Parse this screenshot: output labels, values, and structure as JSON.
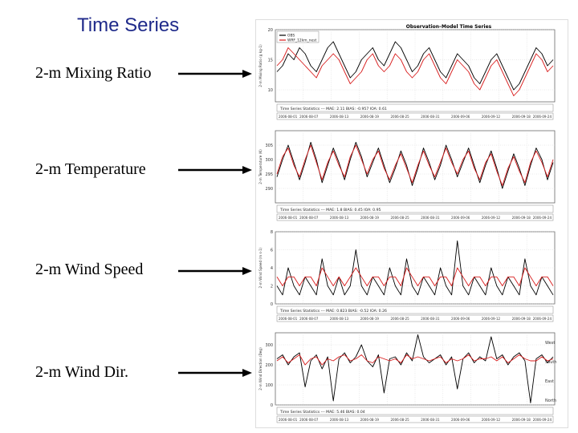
{
  "slide": {
    "title": "Time Series",
    "rows": [
      {
        "label": "2-m Mixing Ratio"
      },
      {
        "label": "2-m Temperature"
      },
      {
        "label": "2-m Wind Speed"
      },
      {
        "label": "2-m Wind Dir."
      }
    ]
  },
  "chart_data": {
    "type": "line",
    "title": "Observation–Model Time Series",
    "x_tick_labels": [
      "2006-08-01",
      "2006-08-07",
      "2006-08-13",
      "2006-08-19",
      "2006-08-25",
      "2006-08-31",
      "2006-09-06",
      "2006-09-12",
      "2006-09-18",
      "2006-09-24"
    ],
    "colors": {
      "observed": "#000000",
      "model": "#d81b1b"
    },
    "legend": {
      "placement": "top-left",
      "entries": [
        "OBS",
        "WRF_12km_nest"
      ]
    },
    "panels": [
      {
        "name": "mixing-ratio",
        "ylabel": "2-m Mixing Ratio (g kg-1)",
        "ylim": [
          8,
          20
        ],
        "yticks": [
          "20",
          "15",
          "10"
        ],
        "stats_text": "Time Series Statistics ---    MAE: 2.11      BIAS: -0.957      IOA: 0.61",
        "series": [
          {
            "key": "obs",
            "values": [
              13,
              14,
              16,
              15,
              17,
              16,
              14,
              13,
              15,
              17,
              18,
              16,
              14,
              12,
              13,
              15,
              16,
              17,
              15,
              14,
              16,
              18,
              17,
              15,
              13,
              14,
              16,
              17,
              15,
              13,
              12,
              14,
              16,
              15,
              14,
              12,
              11,
              13,
              15,
              16,
              14,
              12,
              10,
              11,
              13,
              15,
              17,
              16,
              14,
              15
            ]
          },
          {
            "key": "model",
            "values": [
              14,
              15,
              17,
              16,
              15,
              14,
              13,
              12,
              14,
              15,
              16,
              15,
              13,
              11,
              12,
              13,
              15,
              16,
              14,
              13,
              14,
              16,
              15,
              13,
              12,
              13,
              15,
              16,
              14,
              12,
              11,
              13,
              15,
              14,
              13,
              11,
              10,
              12,
              14,
              15,
              13,
              11,
              9,
              10,
              12,
              14,
              16,
              15,
              13,
              14
            ]
          }
        ]
      },
      {
        "name": "temperature",
        "ylabel": "2-m Temperature (K)",
        "ylim": [
          285,
          310
        ],
        "yticks": [
          "305",
          "300",
          "295",
          "290"
        ],
        "stats_text": "Time Series Statistics ---    MAE: 1.8       BIAS: 0.45       IOA: 0.95",
        "series": [
          {
            "key": "obs",
            "values": [
              294,
              300,
              305,
              299,
              293,
              299,
              306,
              300,
              292,
              298,
              304,
              299,
              293,
              300,
              306,
              301,
              294,
              299,
              304,
              298,
              292,
              297,
              303,
              298,
              291,
              297,
              304,
              299,
              293,
              298,
              305,
              300,
              294,
              299,
              304,
              298,
              292,
              298,
              303,
              297,
              290,
              296,
              302,
              297,
              291,
              298,
              304,
              300,
              293,
              299
            ]
          },
          {
            "key": "model",
            "values": [
              295,
              301,
              304,
              298,
              294,
              300,
              305,
              299,
              293,
              299,
              303,
              298,
              294,
              301,
              305,
              300,
              295,
              300,
              303,
              297,
              293,
              298,
              302,
              297,
              292,
              298,
              303,
              298,
              294,
              299,
              304,
              299,
              295,
              300,
              303,
              297,
              293,
              299,
              302,
              296,
              291,
              297,
              301,
              296,
              292,
              299,
              303,
              299,
              294,
              300
            ]
          }
        ]
      },
      {
        "name": "wind-speed",
        "ylabel": "2-m Wind Speed (m s-1)",
        "ylim": [
          0,
          8
        ],
        "yticks": [
          "8",
          "6",
          "4",
          "2",
          "0"
        ],
        "stats_text": "Time Series Statistics ---    MAE: 0.823     BIAS: -0.52      IOA: 0.26",
        "series": [
          {
            "key": "obs",
            "values": [
              2,
              1,
              4,
              2,
              1,
              3,
              2,
              1,
              5,
              2,
              1,
              3,
              1,
              2,
              6,
              2,
              1,
              3,
              2,
              1,
              4,
              2,
              1,
              5,
              2,
              1,
              3,
              2,
              1,
              4,
              2,
              1,
              7,
              2,
              1,
              3,
              2,
              1,
              4,
              2,
              1,
              3,
              2,
              1,
              5,
              2,
              1,
              3,
              2,
              1
            ]
          },
          {
            "key": "model",
            "values": [
              3,
              2,
              3,
              3,
              2,
              3,
              3,
              2,
              4,
              3,
              2,
              3,
              2,
              3,
              4,
              3,
              2,
              3,
              3,
              2,
              3,
              3,
              2,
              4,
              3,
              2,
              3,
              3,
              2,
              3,
              3,
              2,
              4,
              3,
              2,
              3,
              3,
              2,
              3,
              3,
              2,
              3,
              3,
              2,
              4,
              3,
              2,
              3,
              3,
              2
            ]
          }
        ]
      },
      {
        "name": "wind-direction",
        "ylabel": "2-m Wind Direction (Deg)",
        "ylim": [
          0,
          360
        ],
        "yticks": [
          "300",
          "200",
          "100",
          "0"
        ],
        "right_labels": [
          "West",
          "South",
          "East",
          "North"
        ],
        "stats_text": "Time Series Statistics ---    MAE: 5.46      BIAS: 0.04",
        "series": [
          {
            "key": "obs",
            "values": [
              230,
              250,
              200,
              240,
              260,
              90,
              220,
              250,
              180,
              240,
              20,
              230,
              260,
              210,
              240,
              300,
              220,
              190,
              250,
              60,
              230,
              240,
              200,
              260,
              220,
              350,
              240,
              210,
              230,
              250,
              200,
              240,
              80,
              230,
              260,
              210,
              240,
              220,
              340,
              230,
              250,
              200,
              240,
              260,
              220,
              10,
              230,
              250,
              210,
              240
            ]
          },
          {
            "key": "model",
            "values": [
              220,
              240,
              210,
              230,
              250,
              200,
              230,
              240,
              200,
              230,
              220,
              240,
              250,
              220,
              230,
              250,
              220,
              210,
              240,
              230,
              220,
              230,
              210,
              250,
              230,
              240,
              230,
              220,
              230,
              240,
              210,
              230,
              220,
              230,
              250,
              220,
              230,
              230,
              240,
              220,
              240,
              210,
              230,
              250,
              230,
              220,
              220,
              240,
              220,
              230
            ]
          }
        ]
      }
    ]
  }
}
